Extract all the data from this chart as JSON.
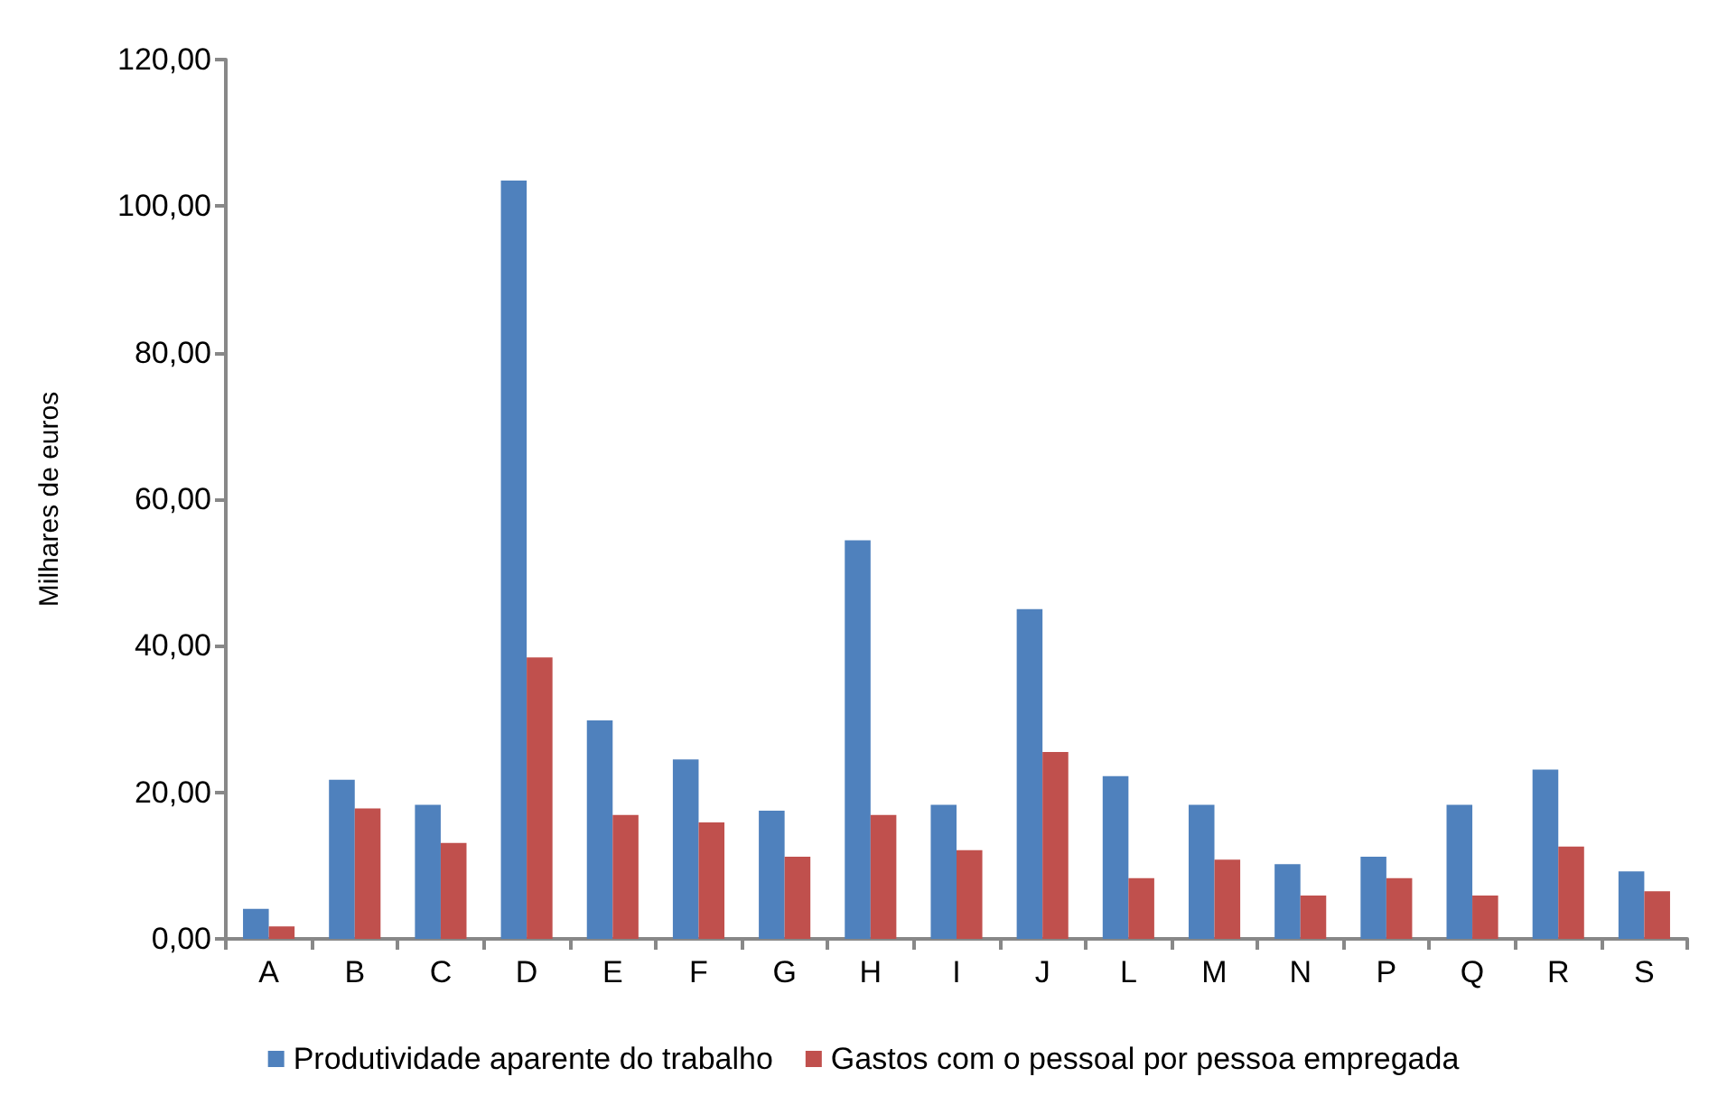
{
  "chart_data": {
    "type": "bar",
    "ylabel": "Milhares de euros",
    "categories": [
      "A",
      "B",
      "C",
      "D",
      "E",
      "F",
      "G",
      "H",
      "I",
      "J",
      "L",
      "M",
      "N",
      "P",
      "Q",
      "R",
      "S"
    ],
    "series": [
      {
        "name": "Produtividade aparente do trabalho",
        "color": "#4f81bd",
        "values": [
          4.1,
          21.7,
          18.3,
          103.5,
          29.8,
          24.5,
          17.5,
          54.4,
          18.3,
          45.0,
          22.2,
          18.3,
          10.2,
          11.2,
          18.3,
          23.1,
          9.2
        ]
      },
      {
        "name": "Gastos com o pessoal por pessoa empregada",
        "color": "#c0504d",
        "values": [
          1.7,
          17.8,
          13.1,
          38.4,
          16.9,
          15.9,
          11.2,
          16.9,
          12.1,
          25.5,
          8.3,
          10.8,
          5.9,
          8.3,
          5.9,
          12.6,
          6.5
        ]
      }
    ],
    "ylim": [
      0,
      120
    ],
    "yticks": [
      {
        "value": 0,
        "label": "0,00"
      },
      {
        "value": 20,
        "label": "20,00"
      },
      {
        "value": 40,
        "label": "40,00"
      },
      {
        "value": 60,
        "label": "60,00"
      },
      {
        "value": 80,
        "label": "80,00"
      },
      {
        "value": 100,
        "label": "100,00"
      },
      {
        "value": 120,
        "label": "120,00"
      }
    ],
    "grid": false,
    "legend": "bottom"
  }
}
